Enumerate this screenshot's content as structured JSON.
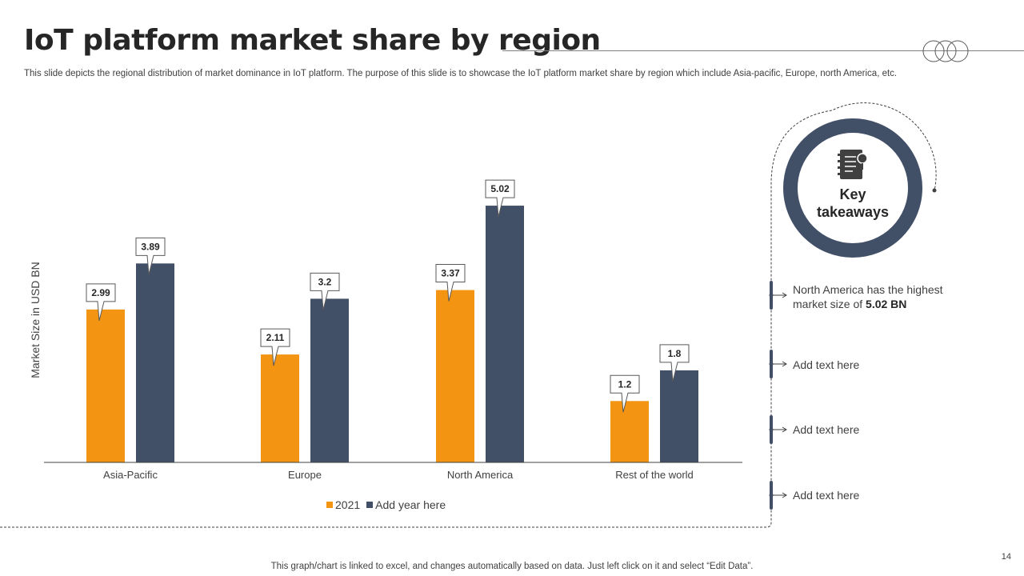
{
  "title": "IoT platform market share by region",
  "subtitle": "This slide depicts the regional distribution of market dominance in IoT platform. The purpose of this slide is to showcase the IoT platform market share by region which include Asia-pacific, Europe, north America, etc.",
  "colors": {
    "series1": "#f39512",
    "series2": "#414f67",
    "axis": "#404040",
    "ring": "#414f67"
  },
  "chart_data": {
    "type": "bar",
    "categories": [
      "Asia-Pacific",
      "Europe",
      "North America",
      "Rest of the world"
    ],
    "series": [
      {
        "name": "2021",
        "values": [
          2.99,
          2.11,
          3.37,
          1.2
        ]
      },
      {
        "name": "Add year here",
        "values": [
          3.89,
          3.2,
          5.02,
          1.8
        ]
      }
    ],
    "value_labels": [
      [
        "2.99",
        "2.11",
        "3.37",
        "1.2"
      ],
      [
        "3.89",
        "3.2",
        "5.02",
        "1.8"
      ]
    ],
    "ylabel": "Market Size in USD BN",
    "xlabel": "",
    "ylim": [
      0,
      6
    ],
    "legend_position": "bottom",
    "grid": false
  },
  "takeaways": {
    "heading": "Key takeaways",
    "icon": "notebook-icon",
    "items": [
      {
        "text": "North America has the highest market size of ",
        "bold": "5.02 BN"
      },
      {
        "text": "Add text here"
      },
      {
        "text": "Add text here"
      },
      {
        "text": "Add text here"
      }
    ]
  },
  "footer": "This graph/chart is linked to excel, and changes automatically based on data. Just left click on it and select “Edit Data”.",
  "page_number": "14"
}
